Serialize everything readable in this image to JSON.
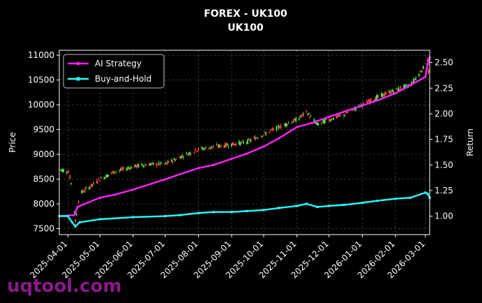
{
  "chart_data": {
    "type": "line",
    "title": "FOREX - UK100",
    "subtitle": "UK100",
    "ylabel_left": "Price",
    "ylabel_right": "Return",
    "x_ticks": [
      "2025-04-01",
      "2025-05-01",
      "2025-06-01",
      "2025-07-01",
      "2025-08-01",
      "2025-09-01",
      "2025-10-01",
      "2025-11-01",
      "2025-12-01",
      "2026-01-01",
      "2026-02-01",
      "2026-03-01"
    ],
    "x_range": [
      "2025-03-24",
      "2026-03-05"
    ],
    "price_axis": {
      "ticks": [
        7500,
        8000,
        8500,
        9000,
        9500,
        10000,
        10500,
        11000
      ],
      "range": [
        7380,
        11100
      ]
    },
    "return_axis": {
      "ticks": [
        1.0,
        1.25,
        1.5,
        1.75,
        2.0,
        2.25,
        2.5
      ],
      "range": [
        0.82,
        2.62
      ]
    },
    "grid": true,
    "legend_position": "top-left",
    "colors": {
      "ai": "#ff22ff",
      "bh": "#22ffff",
      "up": "#ff4444",
      "down": "#44ff44"
    },
    "series": [
      {
        "name": "AI Strategy",
        "key": "ai",
        "points": [
          [
            "2025-03-24",
            1.0
          ],
          [
            "2025-04-07",
            1.01
          ],
          [
            "2025-04-10",
            1.09
          ],
          [
            "2025-05-01",
            1.18
          ],
          [
            "2025-05-15",
            1.21
          ],
          [
            "2025-06-01",
            1.26
          ],
          [
            "2025-07-01",
            1.36
          ],
          [
            "2025-08-01",
            1.47
          ],
          [
            "2025-08-15",
            1.5
          ],
          [
            "2025-09-01",
            1.56
          ],
          [
            "2025-09-15",
            1.61
          ],
          [
            "2025-10-01",
            1.68
          ],
          [
            "2025-10-15",
            1.76
          ],
          [
            "2025-11-01",
            1.87
          ],
          [
            "2025-11-15",
            1.91
          ],
          [
            "2025-12-01",
            1.97
          ],
          [
            "2025-12-15",
            2.02
          ],
          [
            "2026-01-01",
            2.08
          ],
          [
            "2026-01-15",
            2.13
          ],
          [
            "2026-02-01",
            2.2
          ],
          [
            "2026-02-15",
            2.28
          ],
          [
            "2026-03-01",
            2.36
          ],
          [
            "2026-03-03",
            2.48
          ],
          [
            "2026-03-05",
            2.55
          ]
        ]
      },
      {
        "name": "Buy-and-Hold",
        "key": "bh",
        "points": [
          [
            "2025-03-24",
            1.0
          ],
          [
            "2025-04-01",
            1.0
          ],
          [
            "2025-04-05",
            0.94
          ],
          [
            "2025-04-08",
            0.9
          ],
          [
            "2025-04-12",
            0.94
          ],
          [
            "2025-05-01",
            0.97
          ],
          [
            "2025-06-01",
            0.99
          ],
          [
            "2025-07-01",
            1.0
          ],
          [
            "2025-07-15",
            1.01
          ],
          [
            "2025-08-01",
            1.03
          ],
          [
            "2025-08-15",
            1.04
          ],
          [
            "2025-09-01",
            1.04
          ],
          [
            "2025-09-15",
            1.05
          ],
          [
            "2025-10-01",
            1.06
          ],
          [
            "2025-10-15",
            1.08
          ],
          [
            "2025-11-01",
            1.1
          ],
          [
            "2025-11-10",
            1.12
          ],
          [
            "2025-11-20",
            1.09
          ],
          [
            "2025-12-01",
            1.1
          ],
          [
            "2025-12-15",
            1.11
          ],
          [
            "2026-01-01",
            1.13
          ],
          [
            "2026-01-15",
            1.15
          ],
          [
            "2026-02-01",
            1.17
          ],
          [
            "2026-02-15",
            1.18
          ],
          [
            "2026-03-01",
            1.23
          ],
          [
            "2026-03-03",
            1.22
          ],
          [
            "2026-03-05",
            1.18
          ]
        ]
      }
    ],
    "price_path": [
      [
        "2025-03-24",
        8700
      ],
      [
        "2025-04-02",
        8650
      ],
      [
        "2025-04-05",
        8300
      ],
      [
        "2025-04-08",
        7650
      ],
      [
        "2025-04-12",
        8200
      ],
      [
        "2025-04-25",
        8400
      ],
      [
        "2025-05-01",
        8500
      ],
      [
        "2025-05-15",
        8650
      ],
      [
        "2025-06-01",
        8750
      ],
      [
        "2025-06-15",
        8800
      ],
      [
        "2025-07-01",
        8800
      ],
      [
        "2025-07-15",
        8950
      ],
      [
        "2025-08-01",
        9100
      ],
      [
        "2025-08-15",
        9150
      ],
      [
        "2025-09-01",
        9200
      ],
      [
        "2025-09-15",
        9250
      ],
      [
        "2025-10-01",
        9400
      ],
      [
        "2025-10-15",
        9550
      ],
      [
        "2025-11-01",
        9700
      ],
      [
        "2025-11-10",
        9850
      ],
      [
        "2025-11-20",
        9600
      ],
      [
        "2025-12-01",
        9700
      ],
      [
        "2025-12-15",
        9800
      ],
      [
        "2026-01-01",
        10000
      ],
      [
        "2026-01-15",
        10150
      ],
      [
        "2026-02-01",
        10300
      ],
      [
        "2026-02-15",
        10400
      ],
      [
        "2026-03-01",
        10800
      ],
      [
        "2026-03-03",
        10900
      ],
      [
        "2026-03-05",
        10450
      ]
    ]
  },
  "watermark": "uqtool.com"
}
